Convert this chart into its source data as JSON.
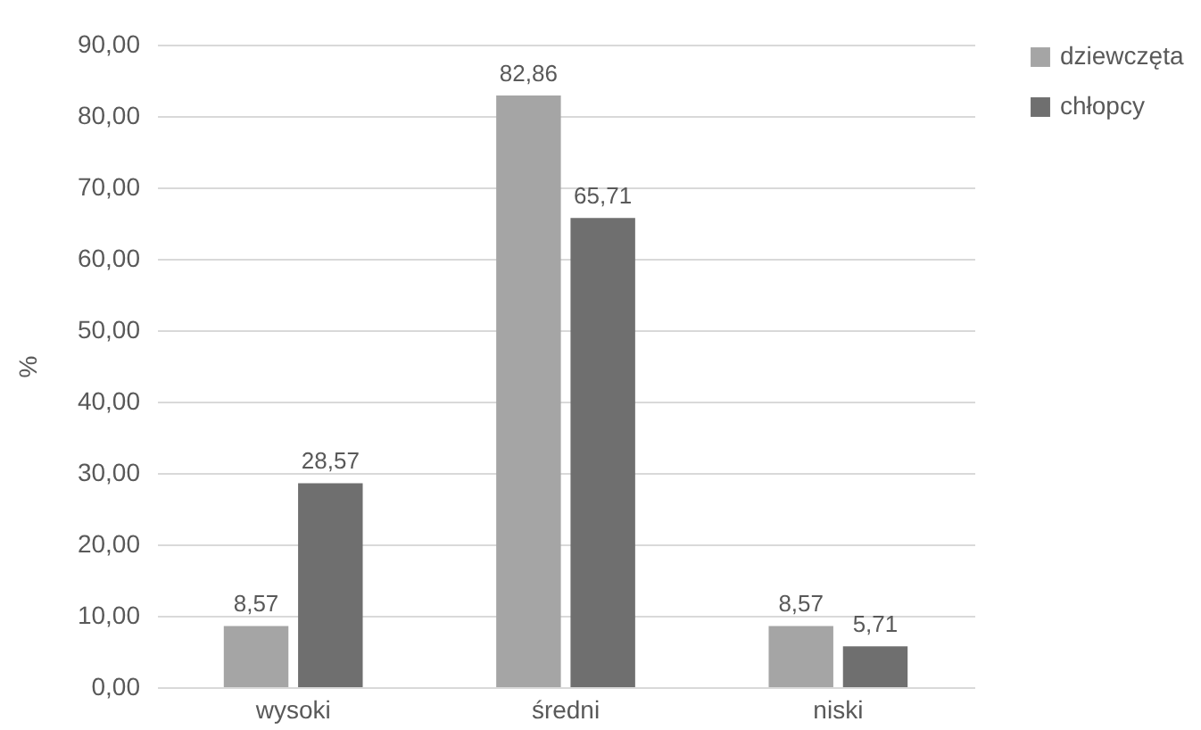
{
  "chart_data": {
    "type": "bar",
    "ylabel": "%",
    "categories": [
      "wysoki",
      "średni",
      "niski"
    ],
    "series": [
      {
        "name": "dziewczęta",
        "color": "#a5a5a5",
        "values": [
          8.57,
          82.86,
          8.57
        ],
        "value_labels": [
          "8,57",
          "82,86",
          "8,57"
        ]
      },
      {
        "name": "chłopcy",
        "color": "#6f6f6f",
        "values": [
          28.57,
          65.71,
          5.71
        ],
        "value_labels": [
          "28,57",
          "65,71",
          "5,71"
        ]
      }
    ],
    "ylim": [
      0,
      90
    ],
    "yticks": [
      {
        "value": 0,
        "label": "0,00"
      },
      {
        "value": 10,
        "label": "10,00"
      },
      {
        "value": 20,
        "label": "20,00"
      },
      {
        "value": 30,
        "label": "30,00"
      },
      {
        "value": 40,
        "label": "40,00"
      },
      {
        "value": 50,
        "label": "50,00"
      },
      {
        "value": 60,
        "label": "60,00"
      },
      {
        "value": 70,
        "label": "70,00"
      },
      {
        "value": 80,
        "label": "80,00"
      },
      {
        "value": 90,
        "label": "90,00"
      }
    ],
    "grid": "y",
    "legend": "right"
  }
}
